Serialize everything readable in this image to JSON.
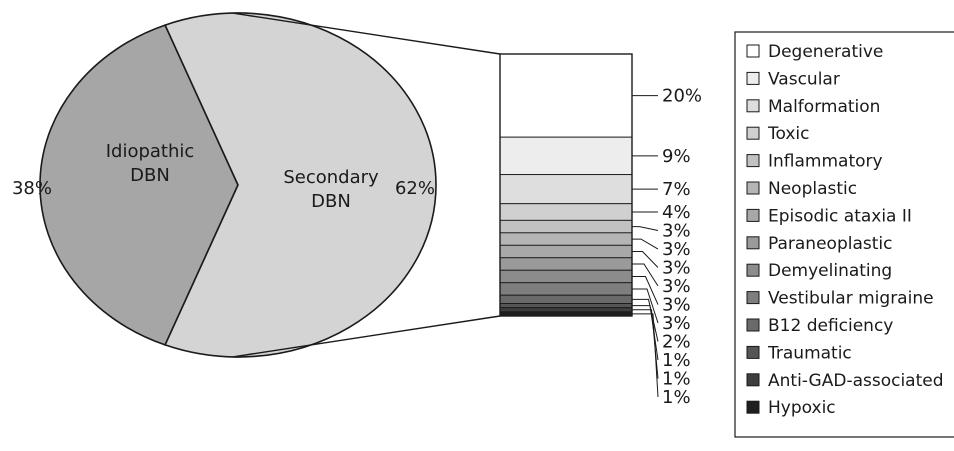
{
  "chart_data": {
    "type": "pie",
    "slices": [
      {
        "label_lines": [
          "Idiopathic",
          "DBN"
        ],
        "value": 38,
        "value_label": "38%",
        "color": "#a6a6a6"
      },
      {
        "label_lines": [
          "Secondary",
          "DBN"
        ],
        "value": 62,
        "value_label": "62%",
        "color": "#d4d4d4"
      }
    ],
    "breakdown": {
      "of": "Secondary DBN",
      "categories": [
        {
          "name": "Degenerative",
          "value": 20,
          "value_label": "20%",
          "color": "#ffffff"
        },
        {
          "name": "Vascular",
          "value": 9,
          "value_label": "9%",
          "color": "#ededed"
        },
        {
          "name": "Malformation",
          "value": 7,
          "value_label": "7%",
          "color": "#dedede"
        },
        {
          "name": "Toxic",
          "value": 4,
          "value_label": "4%",
          "color": "#d0d0d0"
        },
        {
          "name": "Inflammatory",
          "value": 3,
          "value_label": "3%",
          "color": "#c2c2c2"
        },
        {
          "name": "Neoplastic",
          "value": 3,
          "value_label": "3%",
          "color": "#b5b5b5"
        },
        {
          "name": "Episodic ataxia II",
          "value": 3,
          "value_label": "3%",
          "color": "#a8a8a8"
        },
        {
          "name": "Paraneoplastic",
          "value": 3,
          "value_label": "3%",
          "color": "#9a9a9a"
        },
        {
          "name": "Demyelinating",
          "value": 3,
          "value_label": "3%",
          "color": "#8c8c8c"
        },
        {
          "name": "Vestibular migraine",
          "value": 3,
          "value_label": "3%",
          "color": "#7e7e7e"
        },
        {
          "name": "B12 deficiency",
          "value": 2,
          "value_label": "2%",
          "color": "#6a6a6a"
        },
        {
          "name": "Traumatic",
          "value": 1,
          "value_label": "1%",
          "color": "#555555"
        },
        {
          "name": "Anti-GAD-associated",
          "value": 1,
          "value_label": "1%",
          "color": "#3e3e3e"
        },
        {
          "name": "Hypoxic",
          "value": 1,
          "value_label": "1%",
          "color": "#1e1e1e"
        }
      ]
    },
    "legend_position": "right"
  }
}
